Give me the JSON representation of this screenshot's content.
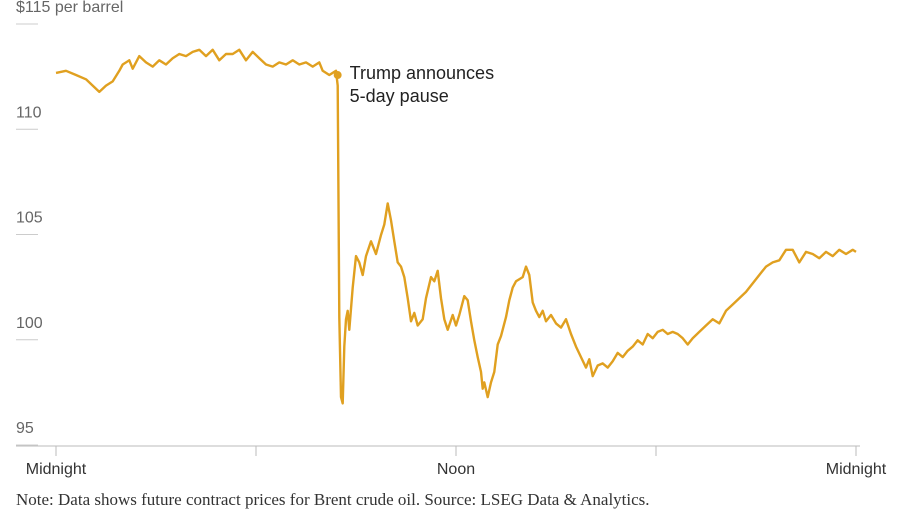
{
  "chart_data": {
    "type": "line",
    "ylabel_unit": "per barrel",
    "y_ticks": [
      {
        "value": 115,
        "label": "$115 per barrel"
      },
      {
        "value": 110,
        "label": "110"
      },
      {
        "value": 105,
        "label": "105"
      },
      {
        "value": 100,
        "label": "100"
      },
      {
        "value": 95,
        "label": "95"
      }
    ],
    "ylim": [
      95,
      115
    ],
    "xlim": [
      0,
      24
    ],
    "x_ticks": [
      {
        "value": 0,
        "label": "Midnight"
      },
      {
        "value": 12,
        "label": "Noon"
      },
      {
        "value": 24,
        "label": "Midnight"
      }
    ],
    "x_minor_ticks": [
      6,
      18
    ],
    "series": [
      {
        "color": "#e0a020",
        "points": [
          [
            0.0,
            112.2
          ],
          [
            0.3,
            112.3
          ],
          [
            0.6,
            112.1
          ],
          [
            0.9,
            111.9
          ],
          [
            1.1,
            111.6
          ],
          [
            1.3,
            111.3
          ],
          [
            1.5,
            111.6
          ],
          [
            1.7,
            111.8
          ],
          [
            1.9,
            112.3
          ],
          [
            2.0,
            112.6
          ],
          [
            2.2,
            112.8
          ],
          [
            2.3,
            112.4
          ],
          [
            2.5,
            113.0
          ],
          [
            2.7,
            112.7
          ],
          [
            2.9,
            112.5
          ],
          [
            3.1,
            112.8
          ],
          [
            3.3,
            112.6
          ],
          [
            3.5,
            112.9
          ],
          [
            3.7,
            113.1
          ],
          [
            3.9,
            113.0
          ],
          [
            4.1,
            113.2
          ],
          [
            4.3,
            113.3
          ],
          [
            4.5,
            113.0
          ],
          [
            4.7,
            113.3
          ],
          [
            4.9,
            112.8
          ],
          [
            5.1,
            113.1
          ],
          [
            5.3,
            113.1
          ],
          [
            5.5,
            113.3
          ],
          [
            5.7,
            112.8
          ],
          [
            5.9,
            113.2
          ],
          [
            6.1,
            112.9
          ],
          [
            6.3,
            112.6
          ],
          [
            6.5,
            112.5
          ],
          [
            6.7,
            112.7
          ],
          [
            6.9,
            112.6
          ],
          [
            7.1,
            112.8
          ],
          [
            7.3,
            112.6
          ],
          [
            7.5,
            112.7
          ],
          [
            7.7,
            112.5
          ],
          [
            7.9,
            112.7
          ],
          [
            8.0,
            112.3
          ],
          [
            8.2,
            112.1
          ],
          [
            8.4,
            112.3
          ],
          [
            8.45,
            111.6
          ],
          [
            8.5,
            100.6
          ],
          [
            8.55,
            96.8
          ],
          [
            8.6,
            96.5
          ],
          [
            8.65,
            99.2
          ],
          [
            8.7,
            100.5
          ],
          [
            8.75,
            100.9
          ],
          [
            8.8,
            100.0
          ],
          [
            8.9,
            102.0
          ],
          [
            9.0,
            103.5
          ],
          [
            9.1,
            103.2
          ],
          [
            9.2,
            102.6
          ],
          [
            9.3,
            103.5
          ],
          [
            9.45,
            104.2
          ],
          [
            9.6,
            103.6
          ],
          [
            9.75,
            104.5
          ],
          [
            9.85,
            105.0
          ],
          [
            9.95,
            106.0
          ],
          [
            10.05,
            105.2
          ],
          [
            10.15,
            104.2
          ],
          [
            10.25,
            103.2
          ],
          [
            10.35,
            103.0
          ],
          [
            10.45,
            102.5
          ],
          [
            10.55,
            101.5
          ],
          [
            10.65,
            100.4
          ],
          [
            10.75,
            100.8
          ],
          [
            10.85,
            100.2
          ],
          [
            11.0,
            100.5
          ],
          [
            11.1,
            101.5
          ],
          [
            11.25,
            102.5
          ],
          [
            11.35,
            102.3
          ],
          [
            11.45,
            102.8
          ],
          [
            11.55,
            101.5
          ],
          [
            11.65,
            100.5
          ],
          [
            11.75,
            100.0
          ],
          [
            11.9,
            100.7
          ],
          [
            12.0,
            100.2
          ],
          [
            12.1,
            100.7
          ],
          [
            12.25,
            101.6
          ],
          [
            12.35,
            101.4
          ],
          [
            12.45,
            100.4
          ],
          [
            12.55,
            99.5
          ],
          [
            12.65,
            98.7
          ],
          [
            12.75,
            98.0
          ],
          [
            12.8,
            97.2
          ],
          [
            12.85,
            97.5
          ],
          [
            12.95,
            96.8
          ],
          [
            13.05,
            97.5
          ],
          [
            13.15,
            98.0
          ],
          [
            13.25,
            99.3
          ],
          [
            13.35,
            99.7
          ],
          [
            13.5,
            100.6
          ],
          [
            13.6,
            101.4
          ],
          [
            13.7,
            102.0
          ],
          [
            13.8,
            102.3
          ],
          [
            13.9,
            102.4
          ],
          [
            14.0,
            102.5
          ],
          [
            14.1,
            103.0
          ],
          [
            14.2,
            102.6
          ],
          [
            14.3,
            101.3
          ],
          [
            14.4,
            100.9
          ],
          [
            14.5,
            100.6
          ],
          [
            14.6,
            100.9
          ],
          [
            14.7,
            100.4
          ],
          [
            14.85,
            100.7
          ],
          [
            15.0,
            100.3
          ],
          [
            15.15,
            100.1
          ],
          [
            15.3,
            100.5
          ],
          [
            15.45,
            99.8
          ],
          [
            15.6,
            99.2
          ],
          [
            15.75,
            98.7
          ],
          [
            15.9,
            98.2
          ],
          [
            16.0,
            98.6
          ],
          [
            16.1,
            97.8
          ],
          [
            16.25,
            98.3
          ],
          [
            16.4,
            98.4
          ],
          [
            16.55,
            98.2
          ],
          [
            16.7,
            98.5
          ],
          [
            16.85,
            98.9
          ],
          [
            17.0,
            98.7
          ],
          [
            17.15,
            99.0
          ],
          [
            17.3,
            99.2
          ],
          [
            17.45,
            99.5
          ],
          [
            17.6,
            99.3
          ],
          [
            17.75,
            99.8
          ],
          [
            17.9,
            99.6
          ],
          [
            18.05,
            99.9
          ],
          [
            18.2,
            100.0
          ],
          [
            18.35,
            99.8
          ],
          [
            18.5,
            99.9
          ],
          [
            18.65,
            99.8
          ],
          [
            18.8,
            99.6
          ],
          [
            18.95,
            99.3
          ],
          [
            19.1,
            99.6
          ],
          [
            19.3,
            99.9
          ],
          [
            19.5,
            100.2
          ],
          [
            19.7,
            100.5
          ],
          [
            19.9,
            100.3
          ],
          [
            20.1,
            100.9
          ],
          [
            20.3,
            101.2
          ],
          [
            20.5,
            101.5
          ],
          [
            20.7,
            101.8
          ],
          [
            20.9,
            102.2
          ],
          [
            21.1,
            102.6
          ],
          [
            21.3,
            103.0
          ],
          [
            21.5,
            103.2
          ],
          [
            21.7,
            103.3
          ],
          [
            21.9,
            103.8
          ],
          [
            22.1,
            103.8
          ],
          [
            22.3,
            103.2
          ],
          [
            22.5,
            103.7
          ],
          [
            22.7,
            103.6
          ],
          [
            22.9,
            103.4
          ],
          [
            23.1,
            103.7
          ],
          [
            23.3,
            103.5
          ],
          [
            23.5,
            103.8
          ],
          [
            23.7,
            103.6
          ],
          [
            23.9,
            103.8
          ],
          [
            24.0,
            103.7
          ]
        ]
      }
    ],
    "annotation": {
      "x": 8.45,
      "y": 112.1,
      "lines": [
        "Trump announces",
        "5-day pause"
      ]
    },
    "note": "Note: Data shows future contract prices for Brent crude oil. Source: LSEG Data & Analytics."
  }
}
